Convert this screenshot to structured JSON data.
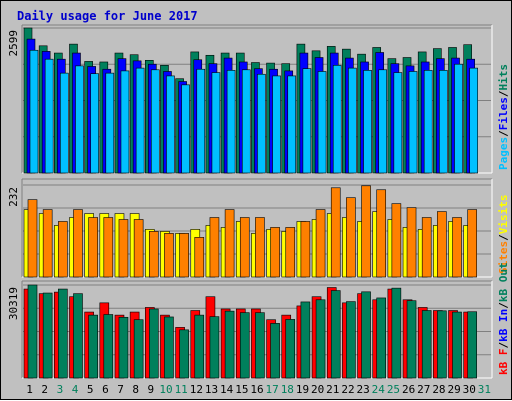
{
  "chart_data": {
    "type": "bar",
    "title": "Daily usage for June 2017",
    "days": [
      "1",
      "2",
      "3",
      "4",
      "5",
      "6",
      "7",
      "8",
      "9",
      "10",
      "11",
      "12",
      "13",
      "14",
      "15",
      "16",
      "17",
      "18",
      "19",
      "20",
      "21",
      "22",
      "23",
      "24",
      "25",
      "26",
      "27",
      "28",
      "29",
      "30",
      "31"
    ],
    "weekend_days": [
      "3",
      "4",
      "10",
      "11",
      "17",
      "18",
      "24",
      "25",
      "31"
    ],
    "day_label_colors": {
      "weekday": "#000000",
      "weekend": "#00805c"
    },
    "panels": [
      {
        "name": "hits-files-pages",
        "max_label": "2599",
        "ymax": 2599,
        "legend": [
          {
            "text": "Pages",
            "color": "#00c0ff"
          },
          {
            "text": "Files",
            "color": "#0000ff"
          },
          {
            "text": "Hits",
            "color": "#00805c"
          }
        ],
        "series": [
          {
            "name": "Hits",
            "color": "#00805c",
            "values": [
              2599,
              2280,
              2150,
              2310,
              2000,
              1990,
              2150,
              2120,
              2020,
              1930,
              1690,
              2170,
              2110,
              2150,
              2150,
              1980,
              1970,
              1960,
              2310,
              2190,
              2270,
              2220,
              2130,
              2250,
              2050,
              2070,
              2170,
              2230,
              2250,
              2300,
              null
            ]
          },
          {
            "name": "Files",
            "color": "#0000ff",
            "values": [
              2400,
              2180,
              2040,
              2150,
              1910,
              1860,
              2050,
              2010,
              1950,
              1820,
              1640,
              2030,
              1960,
              2060,
              1990,
              1870,
              1860,
              1830,
              2150,
              2070,
              2150,
              2060,
              1990,
              2160,
              1960,
              1920,
              1990,
              2050,
              2060,
              2040,
              null
            ]
          },
          {
            "name": "Pages",
            "color": "#00c0ff",
            "values": [
              2200,
              2040,
              1790,
              1920,
              1780,
              1790,
              1830,
              1880,
              1850,
              1740,
              1580,
              1860,
              1800,
              1840,
              1850,
              1770,
              1740,
              1740,
              1870,
              1820,
              1930,
              1880,
              1840,
              1850,
              1800,
              1820,
              1840,
              1840,
              1950,
              1880,
              null
            ]
          }
        ]
      },
      {
        "name": "sites-visits",
        "max_label": "232",
        "ymax": 232,
        "legend": [
          {
            "text": "Sites",
            "color": "#ff8000"
          },
          {
            "text": "Visits",
            "color": "#ffff00"
          }
        ],
        "series": [
          {
            "name": "Visits",
            "color": "#ffff00",
            "values": [
              170,
              160,
              130,
              150,
              160,
              160,
              160,
              160,
              120,
              115,
              110,
              120,
              130,
              125,
              140,
              110,
              120,
              115,
              140,
              145,
              160,
              150,
              140,
              165,
              145,
              125,
              120,
              130,
              140,
              130,
              null
            ]
          },
          {
            "name": "Sites",
            "color": "#ff8000",
            "values": [
              195,
              170,
              140,
              170,
              150,
              150,
              145,
              145,
              115,
              110,
              110,
              100,
              150,
              170,
              150,
              150,
              125,
              125,
              140,
              170,
              225,
              200,
              230,
              220,
              185,
              175,
              150,
              165,
              150,
              170,
              null
            ]
          }
        ]
      },
      {
        "name": "kbytes",
        "max_label": "30319",
        "ymax": 30319,
        "legend": [
          {
            "text": "kB F",
            "color": "#ff0000"
          },
          {
            "text": "kB In",
            "color": "#0000ff"
          },
          {
            "text": "kB Out",
            "color": "#00805c"
          }
        ],
        "series": [
          {
            "name": "kB F",
            "color": "#ff0000",
            "values": [
              29000,
              27500,
              28000,
              26500,
              21500,
              24500,
              20500,
              21500,
              23000,
              20500,
              16500,
              22000,
              26500,
              22500,
              22500,
              22500,
              19000,
              20500,
              23500,
              26500,
              29500,
              24500,
              27500,
              25500,
              29000,
              25500,
              23000,
              22000,
              22000,
              21500,
              null
            ]
          },
          {
            "name": "kB Out",
            "color": "#00805c",
            "values": [
              30319,
              27700,
              29000,
              27500,
              20500,
              20700,
              19800,
              19000,
              22500,
              19900,
              15700,
              20500,
              20000,
              21800,
              21300,
              21300,
              17800,
              19100,
              24800,
              25500,
              28500,
              24900,
              28100,
              26100,
              29300,
              25200,
              22000,
              21900,
              21500,
              21600,
              null
            ]
          }
        ]
      }
    ]
  }
}
